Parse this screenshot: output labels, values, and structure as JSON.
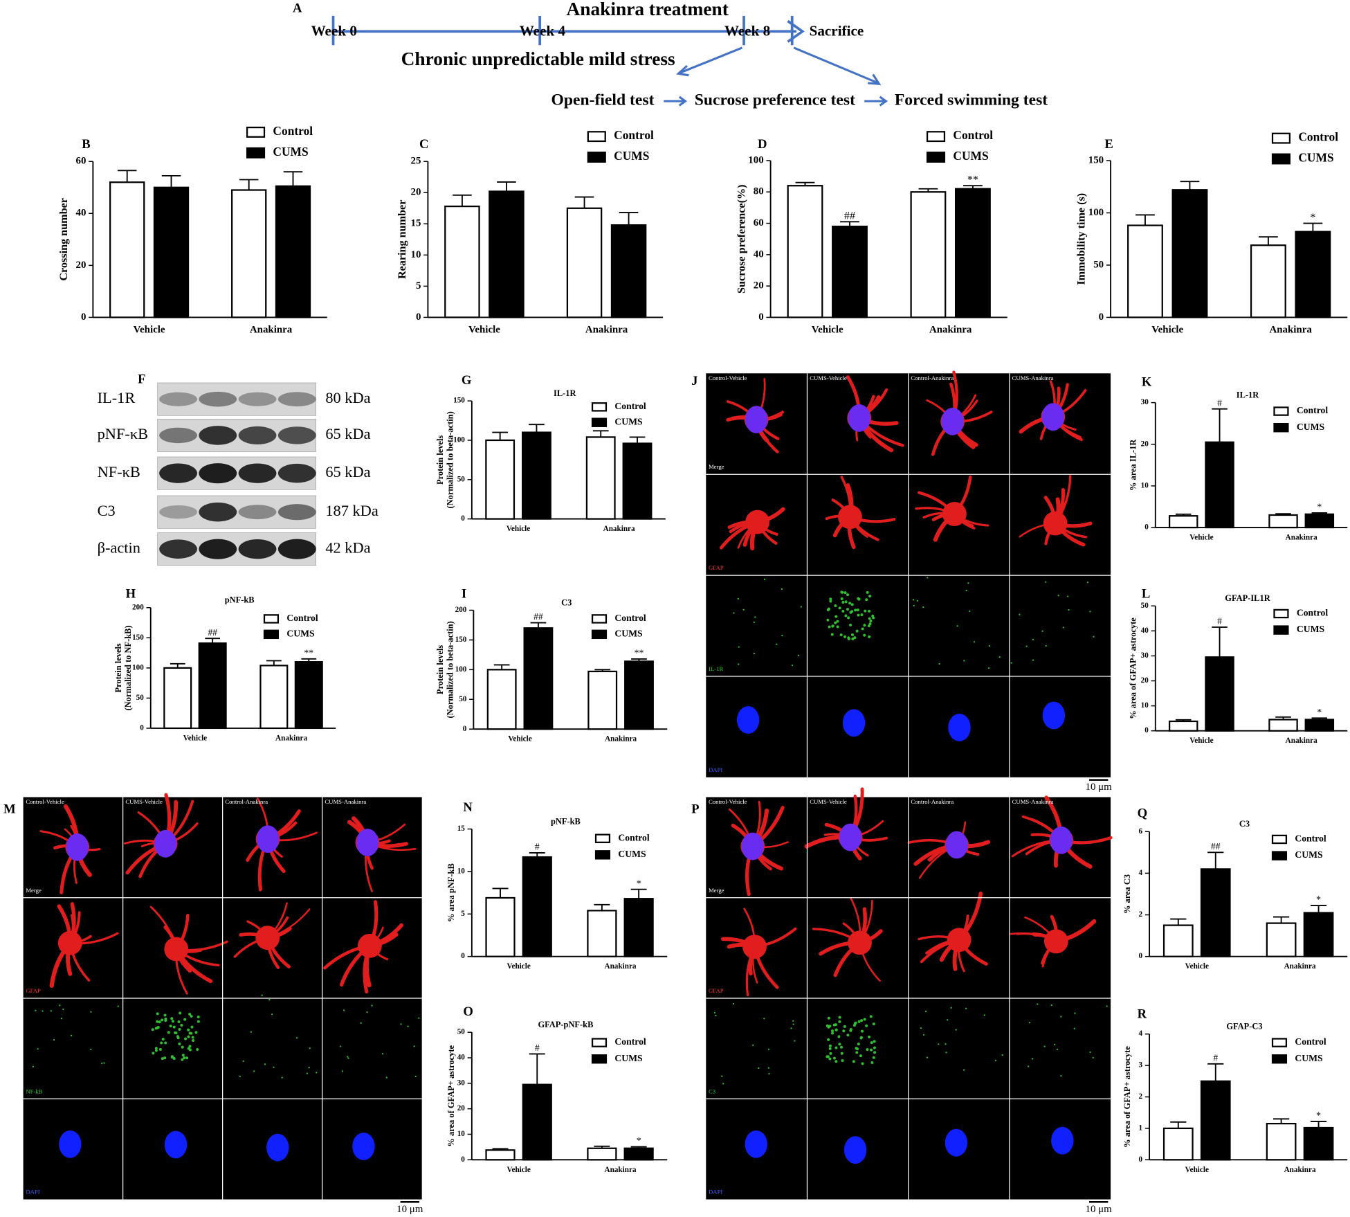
{
  "timeline": {
    "panel": "A",
    "treatment": "Anakinra treatment",
    "weeks": [
      "Week 0",
      "Week 4",
      "Week 8"
    ],
    "end": "Sacrifice",
    "stress": "Chronic unpredictable mild stress",
    "tests": [
      "Open-field test",
      "Sucrose preference test",
      "Forced swimming test"
    ]
  },
  "blot": {
    "panel": "F",
    "rows": [
      {
        "protein": "IL-1R",
        "size": "80 kDa"
      },
      {
        "protein": "pNF-κB",
        "size": "65 kDa"
      },
      {
        "protein": "NF-κB",
        "size": "65 kDa"
      },
      {
        "protein": "C3",
        "size": "187 kDa"
      },
      {
        "protein": "β-actin",
        "size": "42 kDa"
      }
    ]
  },
  "micrographs": [
    {
      "panel": "J",
      "columns": [
        "Control-Vehicle",
        "CUMS-Vehicle",
        "Control-Anakinra",
        "CUMS-Anakinra"
      ],
      "rows": [
        "Merge",
        "GFAP",
        "IL-1R",
        "DAPI"
      ],
      "scale_bar": "10 μm"
    },
    {
      "panel": "M",
      "columns": [
        "Control-Vehicle",
        "CUMS-Vehicle",
        "Control-Anakinra",
        "CUMS-Anakinra"
      ],
      "rows": [
        "Merge",
        "GFAP",
        "NF-kB",
        "DAPI"
      ],
      "scale_bar": "10 μm"
    },
    {
      "panel": "P",
      "columns": [
        "Control-Vehicle",
        "CUMS-Vehicle",
        "Control-Anakinra",
        "CUMS-Anakinra"
      ],
      "rows": [
        "Merge",
        "GFAP",
        "C3",
        "DAPI"
      ],
      "scale_bar": "10 μm"
    }
  ],
  "chart_data": [
    {
      "type": "bar",
      "panel": "B",
      "ylabel": [
        "Crossing number"
      ],
      "categories": [
        "Vehicle",
        "Anakinra"
      ],
      "ylim": [
        0,
        60
      ],
      "yticks": [
        0,
        20,
        40,
        60
      ],
      "series": [
        {
          "name": "Control",
          "color": "#ffffff",
          "values": [
            52,
            49
          ],
          "errors": [
            4.5,
            4
          ],
          "annotations": [
            null,
            null
          ]
        },
        {
          "name": "CUMS",
          "color": "#000000",
          "values": [
            50,
            50.5
          ],
          "errors": [
            4.5,
            5.5
          ],
          "annotations": [
            null,
            null
          ]
        }
      ]
    },
    {
      "type": "bar",
      "panel": "C",
      "ylabel": [
        "Rearing number"
      ],
      "categories": [
        "Vehicle",
        "Anakinra"
      ],
      "ylim": [
        0,
        25
      ],
      "yticks": [
        0,
        5,
        10,
        15,
        20,
        25
      ],
      "series": [
        {
          "name": "Control",
          "color": "#ffffff",
          "values": [
            17.8,
            17.5
          ],
          "errors": [
            1.8,
            1.8
          ],
          "annotations": [
            null,
            null
          ]
        },
        {
          "name": "CUMS",
          "color": "#000000",
          "values": [
            20.2,
            14.8
          ],
          "errors": [
            1.5,
            2
          ],
          "annotations": [
            null,
            null
          ]
        }
      ]
    },
    {
      "type": "bar",
      "panel": "D",
      "ylabel": [
        "Sucrose preference(%)"
      ],
      "categories": [
        "Vehicle",
        "Anakinra"
      ],
      "ylim": [
        0,
        100
      ],
      "yticks": [
        0,
        20,
        40,
        60,
        80,
        100
      ],
      "series": [
        {
          "name": "Control",
          "color": "#ffffff",
          "values": [
            84,
            80
          ],
          "errors": [
            2,
            2
          ],
          "annotations": [
            null,
            null
          ]
        },
        {
          "name": "CUMS",
          "color": "#000000",
          "values": [
            58,
            82
          ],
          "errors": [
            3,
            2
          ],
          "annotations": [
            "##",
            "**"
          ]
        }
      ]
    },
    {
      "type": "bar",
      "panel": "E",
      "ylabel": [
        "Immobility time (s)"
      ],
      "categories": [
        "Vehicle",
        "Anakinra"
      ],
      "ylim": [
        0,
        150
      ],
      "yticks": [
        0,
        50,
        100,
        150
      ],
      "series": [
        {
          "name": "Control",
          "color": "#ffffff",
          "values": [
            88,
            69
          ],
          "errors": [
            10,
            8
          ],
          "annotations": [
            null,
            null
          ]
        },
        {
          "name": "CUMS",
          "color": "#000000",
          "values": [
            122,
            82
          ],
          "errors": [
            8,
            8
          ],
          "annotations": [
            null,
            "*"
          ]
        }
      ]
    },
    {
      "type": "bar",
      "panel": "G",
      "title": "IL-1R",
      "ylabel": [
        "Protein levels",
        "(Normalized to beta-actin)"
      ],
      "categories": [
        "Vehicle",
        "Anakinra"
      ],
      "ylim": [
        0,
        150
      ],
      "yticks": [
        0,
        50,
        100,
        150
      ],
      "series": [
        {
          "name": "Control",
          "color": "#ffffff",
          "values": [
            100,
            104
          ],
          "errors": [
            10,
            8
          ],
          "annotations": [
            null,
            null
          ]
        },
        {
          "name": "CUMS",
          "color": "#000000",
          "values": [
            110,
            96
          ],
          "errors": [
            10,
            8
          ],
          "annotations": [
            null,
            null
          ]
        }
      ]
    },
    {
      "type": "bar",
      "panel": "H",
      "title": "pNF-kB",
      "ylabel": [
        "Protein levels",
        "(Normalized to NF-kB)"
      ],
      "categories": [
        "Vehicle",
        "Anakinra"
      ],
      "ylim": [
        0,
        200
      ],
      "yticks": [
        0,
        50,
        100,
        150,
        200
      ],
      "series": [
        {
          "name": "Control",
          "color": "#ffffff",
          "values": [
            100,
            104
          ],
          "errors": [
            7,
            8
          ],
          "annotations": [
            null,
            null
          ]
        },
        {
          "name": "CUMS",
          "color": "#000000",
          "values": [
            141,
            110
          ],
          "errors": [
            8,
            5
          ],
          "annotations": [
            "##",
            "**"
          ]
        }
      ]
    },
    {
      "type": "bar",
      "panel": "I",
      "title": "C3",
      "ylabel": [
        "Protein levels",
        "(Normalized to beta-actin)"
      ],
      "categories": [
        "Vehicle",
        "Anakinra"
      ],
      "ylim": [
        0,
        200
      ],
      "yticks": [
        0,
        50,
        100,
        150,
        200
      ],
      "series": [
        {
          "name": "Control",
          "color": "#ffffff",
          "values": [
            100,
            97
          ],
          "errors": [
            8,
            3
          ],
          "annotations": [
            null,
            null
          ]
        },
        {
          "name": "CUMS",
          "color": "#000000",
          "values": [
            170,
            114
          ],
          "errors": [
            9,
            4
          ],
          "annotations": [
            "##",
            "**"
          ]
        }
      ]
    },
    {
      "type": "bar",
      "panel": "K",
      "title": "IL-1R",
      "ylabel": [
        "% area IL-1R"
      ],
      "categories": [
        "Vehicle",
        "Anakinra"
      ],
      "ylim": [
        0,
        30
      ],
      "yticks": [
        0,
        10,
        20,
        30
      ],
      "series": [
        {
          "name": "Control",
          "color": "#ffffff",
          "values": [
            2.8,
            3
          ],
          "errors": [
            0.4,
            0.3
          ],
          "annotations": [
            null,
            null
          ]
        },
        {
          "name": "CUMS",
          "color": "#000000",
          "values": [
            20.5,
            3.2
          ],
          "errors": [
            8,
            0.3
          ],
          "annotations": [
            "#",
            "*"
          ]
        }
      ]
    },
    {
      "type": "bar",
      "panel": "L",
      "title": "GFAP-IL1R",
      "ylabel": [
        "% area of GFAP+ astrocyte"
      ],
      "categories": [
        "Vehicle",
        "Anakinra"
      ],
      "ylim": [
        0,
        50
      ],
      "yticks": [
        0,
        10,
        20,
        30,
        40,
        50
      ],
      "series": [
        {
          "name": "Control",
          "color": "#ffffff",
          "values": [
            3.8,
            4.5
          ],
          "errors": [
            0.6,
            1
          ],
          "annotations": [
            null,
            null
          ]
        },
        {
          "name": "CUMS",
          "color": "#000000",
          "values": [
            29.5,
            4.5
          ],
          "errors": [
            12,
            0.6
          ],
          "annotations": [
            "#",
            "*"
          ]
        }
      ]
    },
    {
      "type": "bar",
      "panel": "N",
      "title": "pNF-kB",
      "ylabel": [
        "% area pNF-kB"
      ],
      "categories": [
        "Vehicle",
        "Anakinra"
      ],
      "ylim": [
        0,
        15
      ],
      "yticks": [
        0,
        5,
        10,
        15
      ],
      "series": [
        {
          "name": "Control",
          "color": "#ffffff",
          "values": [
            6.9,
            5.4
          ],
          "errors": [
            1.1,
            0.7
          ],
          "annotations": [
            null,
            null
          ]
        },
        {
          "name": "CUMS",
          "color": "#000000",
          "values": [
            11.7,
            6.8
          ],
          "errors": [
            0.5,
            1.1
          ],
          "annotations": [
            "#",
            "*"
          ]
        }
      ]
    },
    {
      "type": "bar",
      "panel": "O",
      "title": "GFAP-pNF-kB",
      "ylabel": [
        "% area of GFAP+ astrocyte"
      ],
      "categories": [
        "Vehicle",
        "Anakinra"
      ],
      "ylim": [
        0,
        50
      ],
      "yticks": [
        0,
        10,
        20,
        30,
        40,
        50
      ],
      "series": [
        {
          "name": "Control",
          "color": "#ffffff",
          "values": [
            3.8,
            4.5
          ],
          "errors": [
            0.5,
            0.8
          ],
          "annotations": [
            null,
            null
          ]
        },
        {
          "name": "CUMS",
          "color": "#000000",
          "values": [
            29.5,
            4.5
          ],
          "errors": [
            12,
            0.6
          ],
          "annotations": [
            "#",
            "*"
          ]
        }
      ]
    },
    {
      "type": "bar",
      "panel": "Q",
      "title": "C3",
      "ylabel": [
        "% area C3"
      ],
      "categories": [
        "Vehicle",
        "Anakinra"
      ],
      "ylim": [
        0,
        6
      ],
      "yticks": [
        0,
        2,
        4,
        6
      ],
      "series": [
        {
          "name": "Control",
          "color": "#ffffff",
          "values": [
            1.5,
            1.6
          ],
          "errors": [
            0.3,
            0.3
          ],
          "annotations": [
            null,
            null
          ]
        },
        {
          "name": "CUMS",
          "color": "#000000",
          "values": [
            4.2,
            2.1
          ],
          "errors": [
            0.8,
            0.35
          ],
          "annotations": [
            "##",
            "*"
          ]
        }
      ]
    },
    {
      "type": "bar",
      "panel": "R",
      "title": "GFAP-C3",
      "ylabel": [
        "% area of GFAP+ astrocyte"
      ],
      "categories": [
        "Vehicle",
        "Anakinra"
      ],
      "ylim": [
        0,
        4
      ],
      "yticks": [
        0,
        1,
        2,
        3,
        4
      ],
      "series": [
        {
          "name": "Control",
          "color": "#ffffff",
          "values": [
            1,
            1.15
          ],
          "errors": [
            0.2,
            0.15
          ],
          "annotations": [
            null,
            null
          ]
        },
        {
          "name": "CUMS",
          "color": "#000000",
          "values": [
            2.5,
            1.02
          ],
          "errors": [
            0.55,
            0.2
          ],
          "annotations": [
            "#",
            "*"
          ]
        }
      ]
    }
  ]
}
